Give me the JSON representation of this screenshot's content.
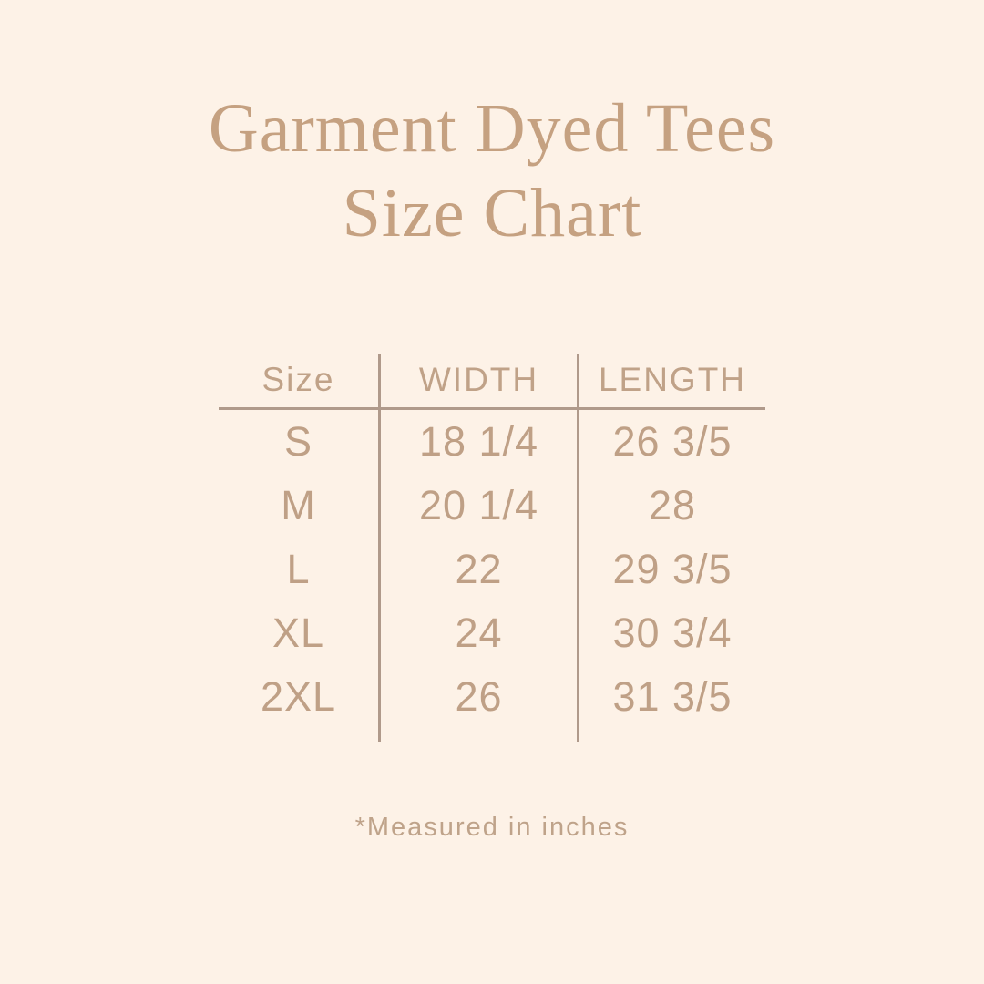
{
  "page": {
    "background_color": "#fdf2e7",
    "title_color": "#c5a181",
    "text_color": "#bfa086",
    "line_color": "#b09a8b"
  },
  "title": {
    "line1": "Garment Dyed Tees",
    "line2": "Size Chart"
  },
  "table": {
    "headers": [
      "Size",
      "WIDTH",
      "LENGTH"
    ],
    "rows": [
      {
        "size": "S",
        "width": "18 1/4",
        "length": "26 3/5"
      },
      {
        "size": "M",
        "width": "20 1/4",
        "length": "28"
      },
      {
        "size": "L",
        "width": "22",
        "length": "29 3/5"
      },
      {
        "size": "XL",
        "width": "24",
        "length": "30 3/4"
      },
      {
        "size": "2XL",
        "width": "26",
        "length": "31 3/5"
      }
    ]
  },
  "footnote": "*Measured in inches"
}
